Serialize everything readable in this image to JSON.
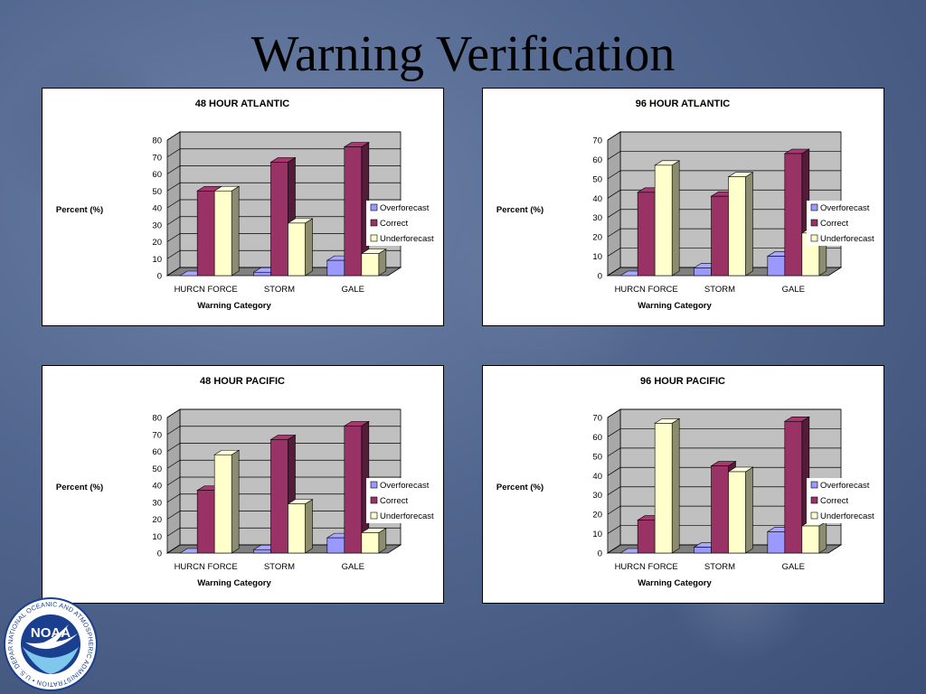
{
  "slide": {
    "title": "Warning Verification"
  },
  "logo": {
    "name": "NOAA",
    "ring_text": "NATIONAL OCEANIC AND ATMOSPHERIC ADMINISTRATION • U.S. DEPARTMENT OF COMMERCE"
  },
  "colors": {
    "overforecast": "#9999ff",
    "correct": "#993366",
    "underforecast": "#ffffcc"
  },
  "chart_data": [
    {
      "type": "bar",
      "title": "48 HOUR ATLANTIC",
      "xlabel": "Warning Category",
      "ylabel": "Percent (%)",
      "categories": [
        "HURCN FORCE",
        "STORM",
        "GALE"
      ],
      "ylim": [
        0,
        80
      ],
      "yticks": [
        0,
        10,
        20,
        30,
        40,
        50,
        60,
        70,
        80
      ],
      "grid": true,
      "legend_position": "right",
      "series": [
        {
          "name": "Overforecast",
          "values": [
            0,
            2,
            9
          ]
        },
        {
          "name": "Correct",
          "values": [
            50,
            67,
            76
          ]
        },
        {
          "name": "Underforecast",
          "values": [
            50,
            31,
            13
          ]
        }
      ]
    },
    {
      "type": "bar",
      "title": "96 HOUR ATLANTIC",
      "xlabel": "Warning Category",
      "ylabel": "Percent (%)",
      "categories": [
        "HURCN FORCE",
        "STORM",
        "GALE"
      ],
      "ylim": [
        0,
        70
      ],
      "yticks": [
        0,
        10,
        20,
        30,
        40,
        50,
        60,
        70
      ],
      "grid": true,
      "legend_position": "right",
      "series": [
        {
          "name": "Overforecast",
          "values": [
            0,
            4,
            10
          ]
        },
        {
          "name": "Correct",
          "values": [
            43,
            41,
            63
          ]
        },
        {
          "name": "Underforecast",
          "values": [
            57,
            51,
            22
          ]
        }
      ]
    },
    {
      "type": "bar",
      "title": "48 HOUR PACIFIC",
      "xlabel": "Warning Category",
      "ylabel": "Percent (%)",
      "categories": [
        "HURCN FORCE",
        "STORM",
        "GALE"
      ],
      "ylim": [
        0,
        80
      ],
      "yticks": [
        0,
        10,
        20,
        30,
        40,
        50,
        60,
        70,
        80
      ],
      "grid": true,
      "legend_position": "right",
      "series": [
        {
          "name": "Overforecast",
          "values": [
            0,
            2,
            9
          ]
        },
        {
          "name": "Correct",
          "values": [
            37,
            67,
            75
          ]
        },
        {
          "name": "Underforecast",
          "values": [
            58,
            29,
            12
          ]
        }
      ]
    },
    {
      "type": "bar",
      "title": "96 HOUR PACIFIC",
      "xlabel": "Warning Category",
      "ylabel": "Percent (%)",
      "categories": [
        "HURCN FORCE",
        "STORM",
        "GALE"
      ],
      "ylim": [
        0,
        70
      ],
      "yticks": [
        0,
        10,
        20,
        30,
        40,
        50,
        60,
        70
      ],
      "grid": true,
      "legend_position": "right",
      "series": [
        {
          "name": "Overforecast",
          "values": [
            0,
            3,
            11
          ]
        },
        {
          "name": "Correct",
          "values": [
            17,
            45,
            68
          ]
        },
        {
          "name": "Underforecast",
          "values": [
            67,
            42,
            14
          ]
        }
      ]
    }
  ]
}
